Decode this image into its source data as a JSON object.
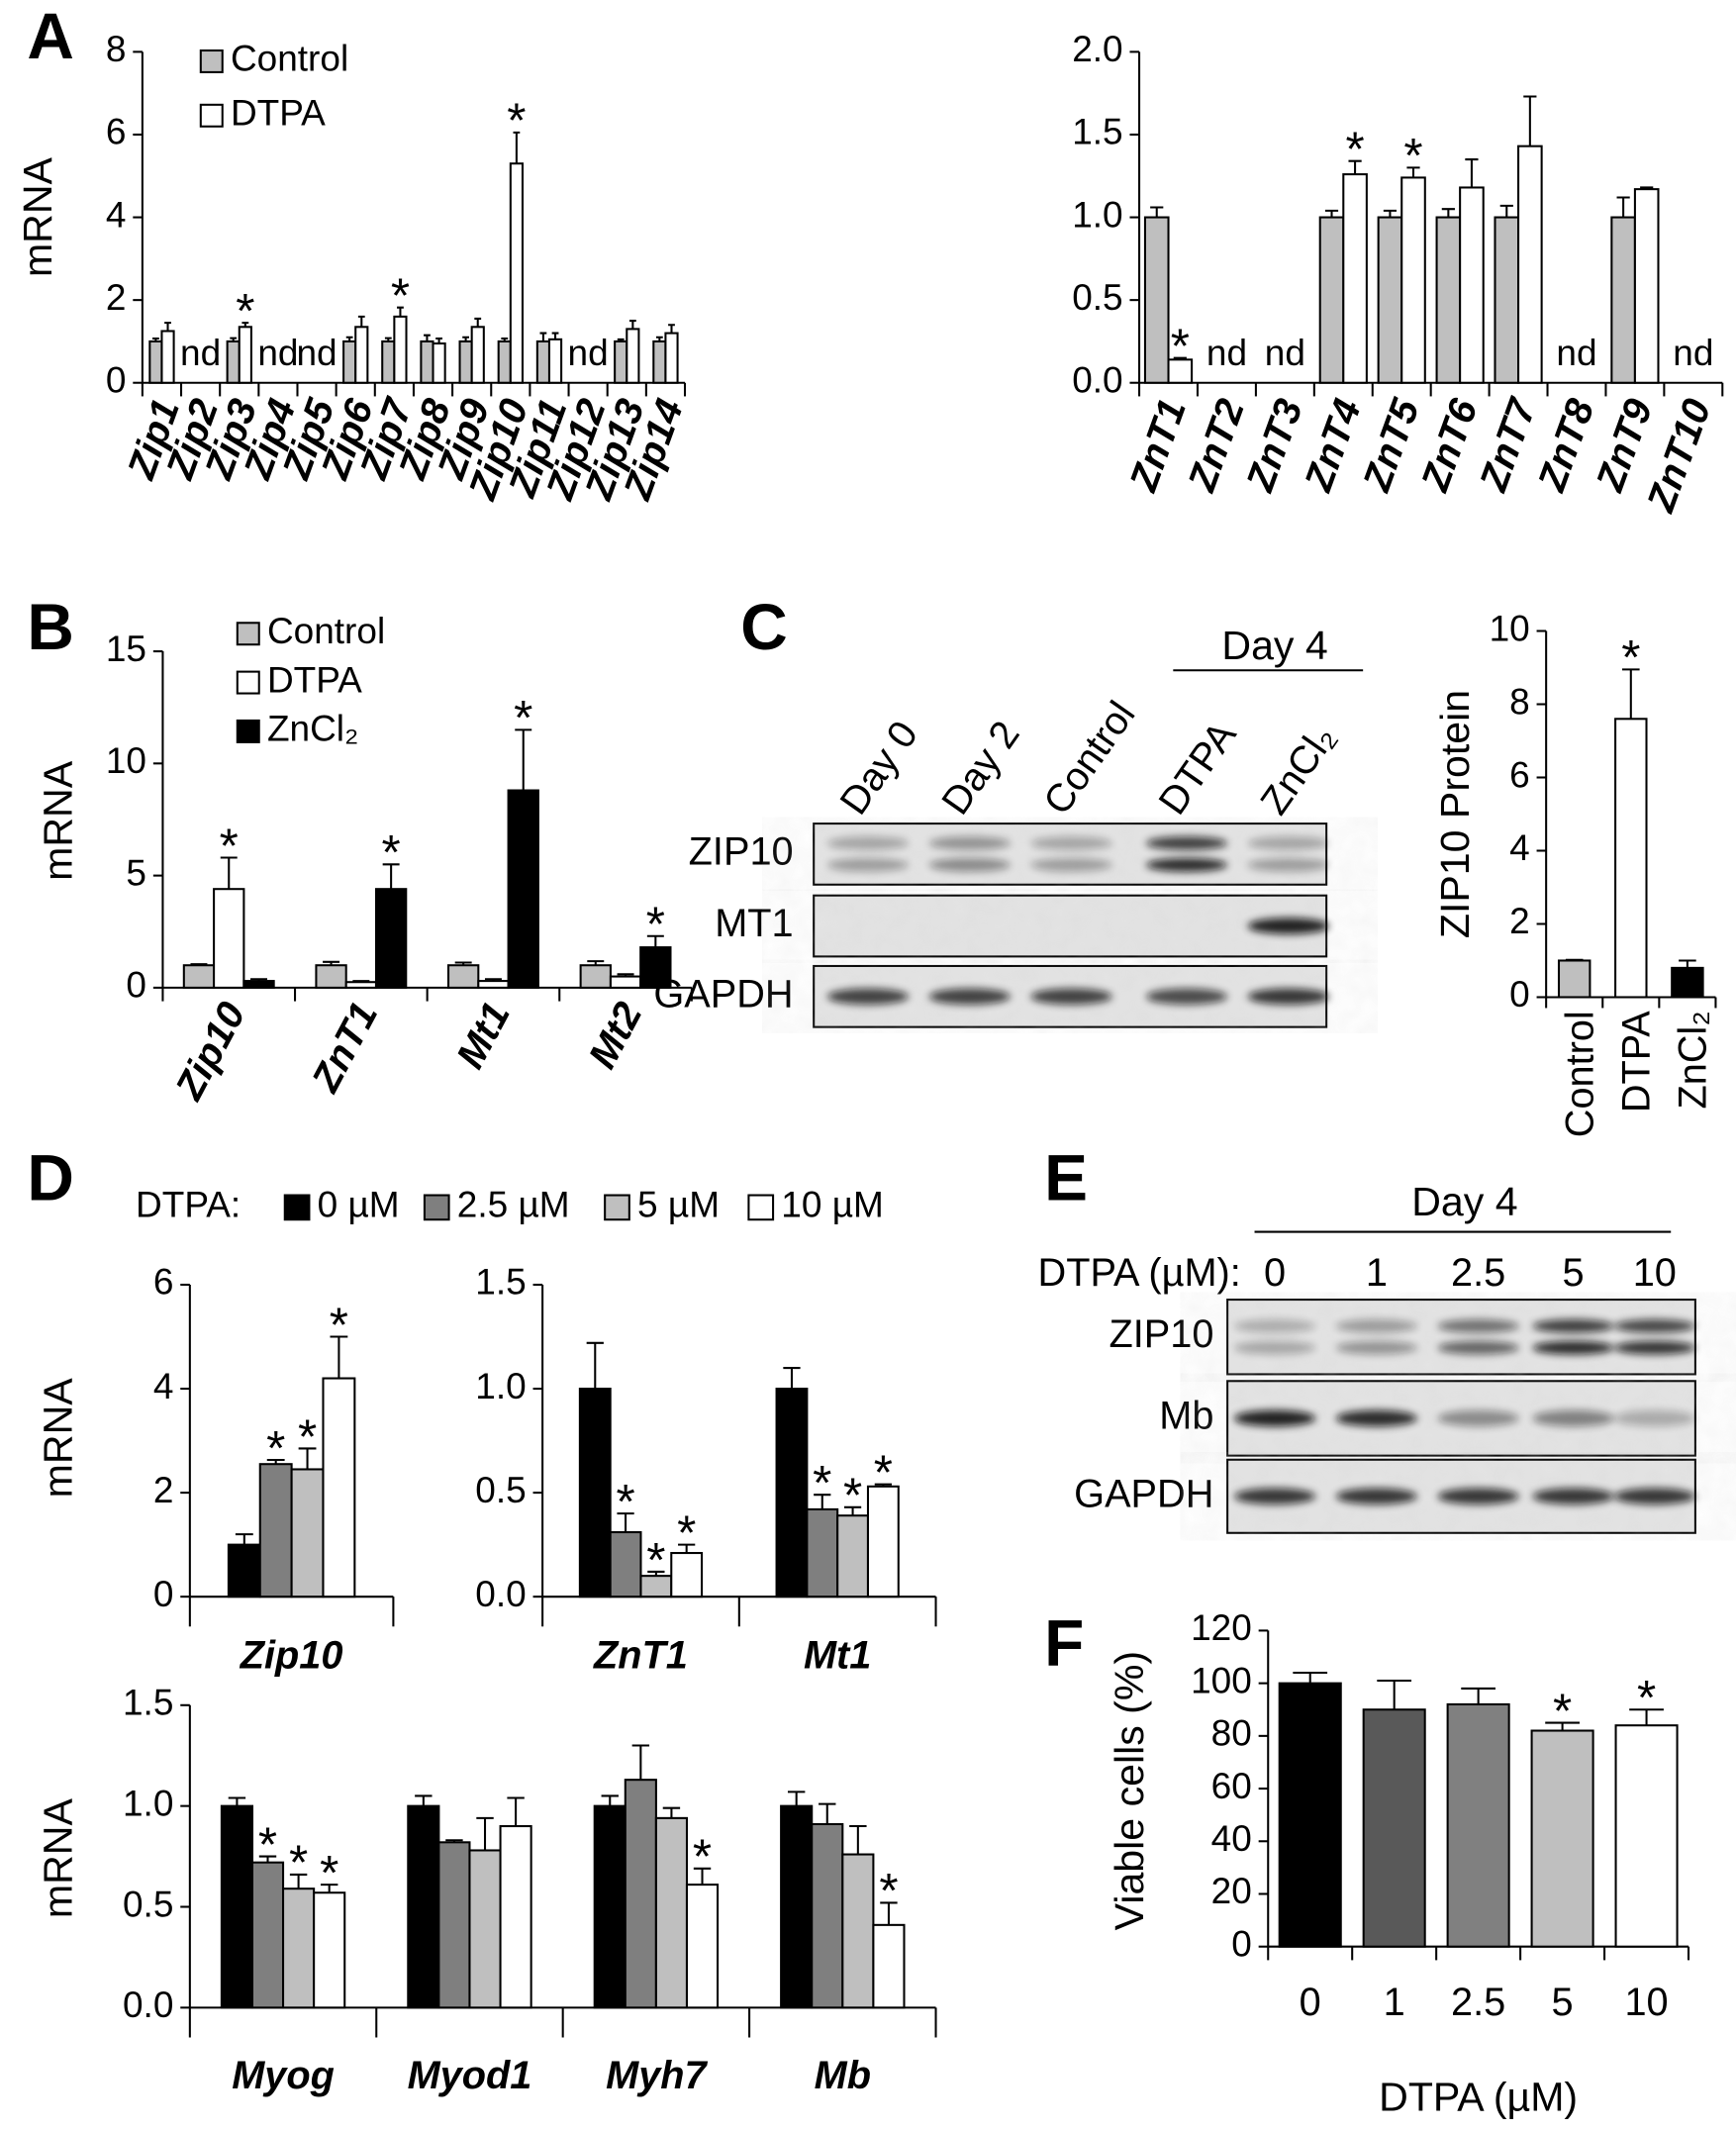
{
  "panel_labels": [
    "A",
    "B",
    "C",
    "D",
    "E",
    "F"
  ],
  "chart_data": [
    {
      "type": "bar",
      "y_label": "mRNA",
      "legend": "top-left",
      "categories": [
        "Zip1",
        "Zip2",
        "Zip3",
        "Zip4",
        "Zip5",
        "Zip6",
        "Zip7",
        "Zip8",
        "Zip9",
        "Zip10",
        "Zip11",
        "Zip12",
        "Zip13",
        "Zip14"
      ],
      "annotations": [
        null,
        "nd",
        null,
        "nd",
        "nd",
        null,
        null,
        null,
        null,
        null,
        null,
        "nd",
        null,
        null
      ],
      "ylim": [
        0,
        8
      ],
      "yticks": [
        0,
        2,
        4,
        6,
        8
      ],
      "series": [
        {
          "name": "Control",
          "color": "#bfbfbf",
          "values": [
            1,
            null,
            1,
            null,
            null,
            1,
            1,
            1,
            1,
            1,
            1,
            null,
            1,
            1
          ],
          "errors": [
            0.07,
            null,
            0.08,
            null,
            null,
            0.1,
            0.08,
            0.15,
            0.1,
            0.07,
            0.2,
            null,
            0.05,
            0.1
          ]
        },
        {
          "name": "DTPA",
          "color": "#ffffff",
          "values": [
            1.25,
            null,
            1.35,
            null,
            null,
            1.35,
            1.6,
            0.95,
            1.35,
            5.3,
            1.05,
            null,
            1.3,
            1.2
          ],
          "errors": [
            0.2,
            null,
            0.1,
            null,
            null,
            0.25,
            0.22,
            0.12,
            0.2,
            0.75,
            0.15,
            null,
            0.2,
            0.2
          ],
          "significance": [
            null,
            null,
            "*",
            null,
            null,
            null,
            "*",
            null,
            null,
            "*",
            null,
            null,
            null,
            null
          ]
        }
      ]
    },
    {
      "type": "bar",
      "categories": [
        "ZnT1",
        "ZnT2",
        "ZnT3",
        "ZnT4",
        "ZnT5",
        "ZnT6",
        "ZnT7",
        "ZnT8",
        "ZnT9",
        "ZnT10"
      ],
      "annotations": [
        null,
        "nd",
        "nd",
        null,
        null,
        null,
        null,
        "nd",
        null,
        "nd"
      ],
      "ylim": [
        0,
        2
      ],
      "yticks": [
        {
          "value": 0,
          "label": "0.0"
        },
        0.5,
        {
          "value": 1,
          "label": "1.0"
        },
        1.5,
        {
          "value": 2,
          "label": "2.0"
        }
      ],
      "series": [
        {
          "color": "#bfbfbf",
          "values": [
            1,
            null,
            null,
            1,
            1,
            1,
            1,
            null,
            1,
            null
          ],
          "errors": [
            0.06,
            null,
            null,
            0.04,
            0.04,
            0.05,
            0.07,
            null,
            0.12,
            null
          ]
        },
        {
          "color": "#ffffff",
          "values": [
            0.14,
            null,
            null,
            1.26,
            1.24,
            1.18,
            1.43,
            null,
            1.17,
            null
          ],
          "errors": [
            0.01,
            null,
            null,
            0.08,
            0.06,
            0.17,
            0.3,
            null,
            0.01,
            null
          ],
          "significance": [
            "*",
            null,
            null,
            "*",
            "*",
            null,
            null,
            null,
            null,
            null
          ]
        }
      ]
    },
    {
      "type": "bar",
      "y_label": "mRNA",
      "legend": "top-left",
      "categories": [
        "Zip10",
        "ZnT1",
        "Mt1",
        "Mt2"
      ],
      "ylim": [
        0,
        15
      ],
      "yticks": [
        0,
        5,
        10,
        15
      ],
      "series": [
        {
          "name": "Control",
          "color": "#bfbfbf",
          "values": [
            1,
            1,
            1,
            1
          ],
          "errors": [
            0.05,
            0.15,
            0.12,
            0.18
          ]
        },
        {
          "name": "DTPA",
          "color": "#ffffff",
          "values": [
            4.4,
            0.25,
            0.3,
            0.5
          ],
          "errors": [
            1.4,
            0.05,
            0.08,
            0.1
          ],
          "significance": [
            "*",
            null,
            null,
            null
          ]
        },
        {
          "name": "ZnCl₂",
          "color": "#000000",
          "values": [
            0.3,
            4.4,
            8.8,
            1.8
          ],
          "errors": [
            0.08,
            1.1,
            2.7,
            0.5
          ],
          "significance": [
            null,
            "*",
            "*",
            "*"
          ]
        }
      ]
    },
    {
      "type": "bar",
      "y_label": "ZIP10 Protein",
      "categories": [
        "Control",
        "DTPA",
        "ZnCl₂"
      ],
      "values": [
        1,
        7.6,
        0.8
      ],
      "errors": [
        0.02,
        1.35,
        0.2
      ],
      "significance": [
        null,
        "*",
        null
      ],
      "colors": [
        "#bfbfbf",
        "#ffffff",
        "#000000"
      ],
      "ylim": [
        0,
        10
      ],
      "yticks": [
        0,
        2,
        4,
        6,
        8,
        10
      ]
    },
    {
      "type": "bar",
      "y_label": "mRNA",
      "legend": "top",
      "legend_title": "DTPA:",
      "categories": [
        "Zip10"
      ],
      "ylim": [
        0,
        6
      ],
      "yticks": [
        0,
        2,
        4,
        6
      ],
      "series": [
        {
          "name": "0 µM",
          "color": "#000000",
          "values": [
            1
          ],
          "errors": [
            0.2
          ]
        },
        {
          "name": "2.5 µM",
          "color": "#7f7f7f",
          "values": [
            2.55
          ],
          "errors": [
            0.08
          ],
          "significance": [
            "*"
          ]
        },
        {
          "name": "5 µM",
          "color": "#bfbfbf",
          "values": [
            2.45
          ],
          "errors": [
            0.4
          ],
          "significance": [
            "*"
          ]
        },
        {
          "name": "10 µM",
          "color": "#ffffff",
          "values": [
            4.2
          ],
          "errors": [
            0.8
          ],
          "significance": [
            "*"
          ]
        }
      ]
    },
    {
      "type": "bar",
      "categories": [
        "ZnT1",
        "Mt1"
      ],
      "ylim": [
        0,
        1.5
      ],
      "yticks": [
        {
          "value": 0,
          "label": "0.0"
        },
        0.5,
        {
          "value": 1,
          "label": "1.0"
        },
        1.5
      ],
      "series": [
        {
          "color": "#000000",
          "values": [
            1,
            1
          ],
          "errors": [
            0.22,
            0.1
          ]
        },
        {
          "color": "#7f7f7f",
          "values": [
            0.31,
            0.42
          ],
          "errors": [
            0.09,
            0.07
          ],
          "significance": [
            "*",
            "*"
          ]
        },
        {
          "color": "#bfbfbf",
          "values": [
            0.1,
            0.39
          ],
          "errors": [
            0.02,
            0.04
          ],
          "significance": [
            "*",
            "*"
          ]
        },
        {
          "color": "#ffffff",
          "values": [
            0.21,
            0.53
          ],
          "errors": [
            0.04,
            0.01
          ],
          "significance": [
            "*",
            "*"
          ]
        }
      ]
    },
    {
      "type": "bar",
      "y_label": "mRNA",
      "categories": [
        "Myog",
        "Myod1",
        "Myh7",
        "Mb"
      ],
      "ylim": [
        0,
        1.5
      ],
      "yticks": [
        {
          "value": 0,
          "label": "0.0"
        },
        0.5,
        {
          "value": 1,
          "label": "1.0"
        },
        1.5
      ],
      "series": [
        {
          "color": "#000000",
          "values": [
            1,
            1,
            1,
            1
          ],
          "errors": [
            0.04,
            0.05,
            0.05,
            0.07
          ]
        },
        {
          "color": "#7f7f7f",
          "values": [
            0.72,
            0.82,
            1.13,
            0.91
          ],
          "errors": [
            0.03,
            0.01,
            0.17,
            0.1
          ],
          "significance": [
            "*",
            null,
            null,
            null
          ]
        },
        {
          "color": "#bfbfbf",
          "values": [
            0.59,
            0.78,
            0.94,
            0.76
          ],
          "errors": [
            0.07,
            0.16,
            0.05,
            0.14
          ],
          "significance": [
            "*",
            null,
            null,
            null
          ]
        },
        {
          "color": "#ffffff",
          "values": [
            0.57,
            0.9,
            0.61,
            0.41
          ],
          "errors": [
            0.04,
            0.14,
            0.08,
            0.11
          ],
          "significance": [
            "*",
            null,
            "*",
            "*"
          ]
        }
      ]
    },
    {
      "type": "bar",
      "y_label": "Viable cells (%)",
      "x_label": "DTPA (µM)",
      "categories": [
        "0",
        "1",
        "2.5",
        "5",
        "10"
      ],
      "values": [
        100,
        90,
        92,
        82,
        84
      ],
      "errors": [
        4,
        11,
        6,
        3,
        6
      ],
      "significance": [
        null,
        null,
        null,
        "*",
        "*"
      ],
      "colors": [
        "#000000",
        "#595959",
        "#808080",
        "#bfbfbf",
        "#ffffff"
      ],
      "ylim": [
        0,
        120
      ],
      "yticks": [
        0,
        20,
        40,
        60,
        80,
        100,
        120
      ]
    }
  ],
  "blots": [
    {
      "group_label": "Day 4",
      "lanes": [
        "Day 0",
        "Day 2",
        "Control",
        "DTPA",
        "ZnCl₂"
      ],
      "rows": [
        "ZIP10",
        "MT1",
        "GAPDH"
      ]
    },
    {
      "group_label": "Day 4",
      "lane_title": "DTPA (µM):",
      "lanes": [
        "0",
        "1",
        "2.5",
        "5",
        "10"
      ],
      "rows": [
        "ZIP10",
        "Mb",
        "GAPDH"
      ]
    }
  ]
}
